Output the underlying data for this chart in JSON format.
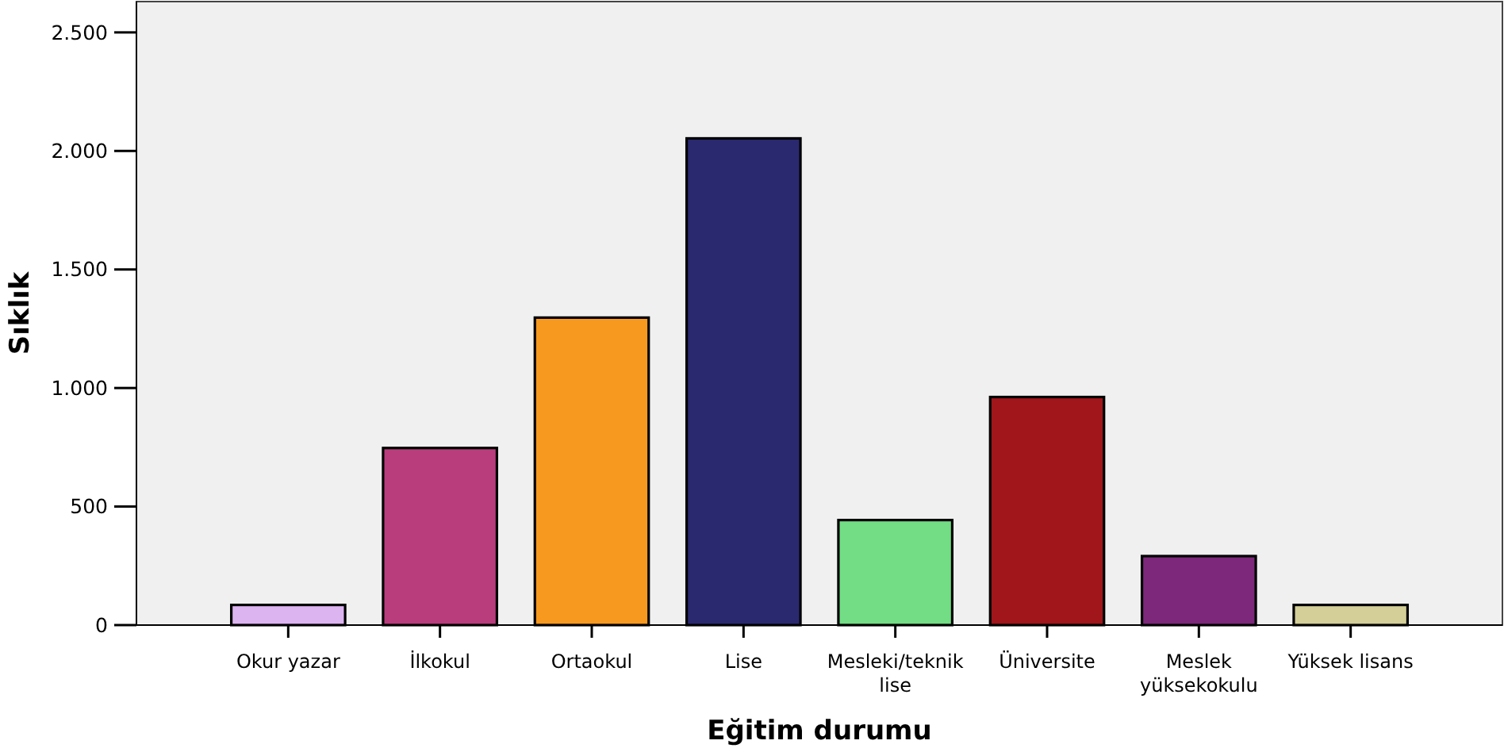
{
  "chart_data": {
    "type": "bar",
    "xlabel": "Eğitim durumu",
    "ylabel": "Sıklık",
    "categories": [
      "Okur yazar",
      "İlkokul",
      "Ortaokul",
      "Lise",
      "Mesleki/teknik lise",
      "Üniversite",
      "Meslek yüksekokulu",
      "Yüksek lisans"
    ],
    "values": [
      85,
      747,
      1297,
      2053,
      443,
      962,
      291,
      85
    ],
    "colors": [
      "#dcb4f0",
      "#b93d7c",
      "#f7991f",
      "#2a2970",
      "#72dd84",
      "#a0161b",
      "#7d287b",
      "#d4cf98"
    ],
    "ylim": [
      0,
      2630
    ],
    "yticks": [
      {
        "value": 0,
        "label": "0"
      },
      {
        "value": 500,
        "label": "500"
      },
      {
        "value": 1000,
        "label": "1.000"
      },
      {
        "value": 1500,
        "label": "1.500"
      },
      {
        "value": 2000,
        "label": "2.000"
      },
      {
        "value": 2500,
        "label": "2.500"
      }
    ],
    "grid": false
  }
}
